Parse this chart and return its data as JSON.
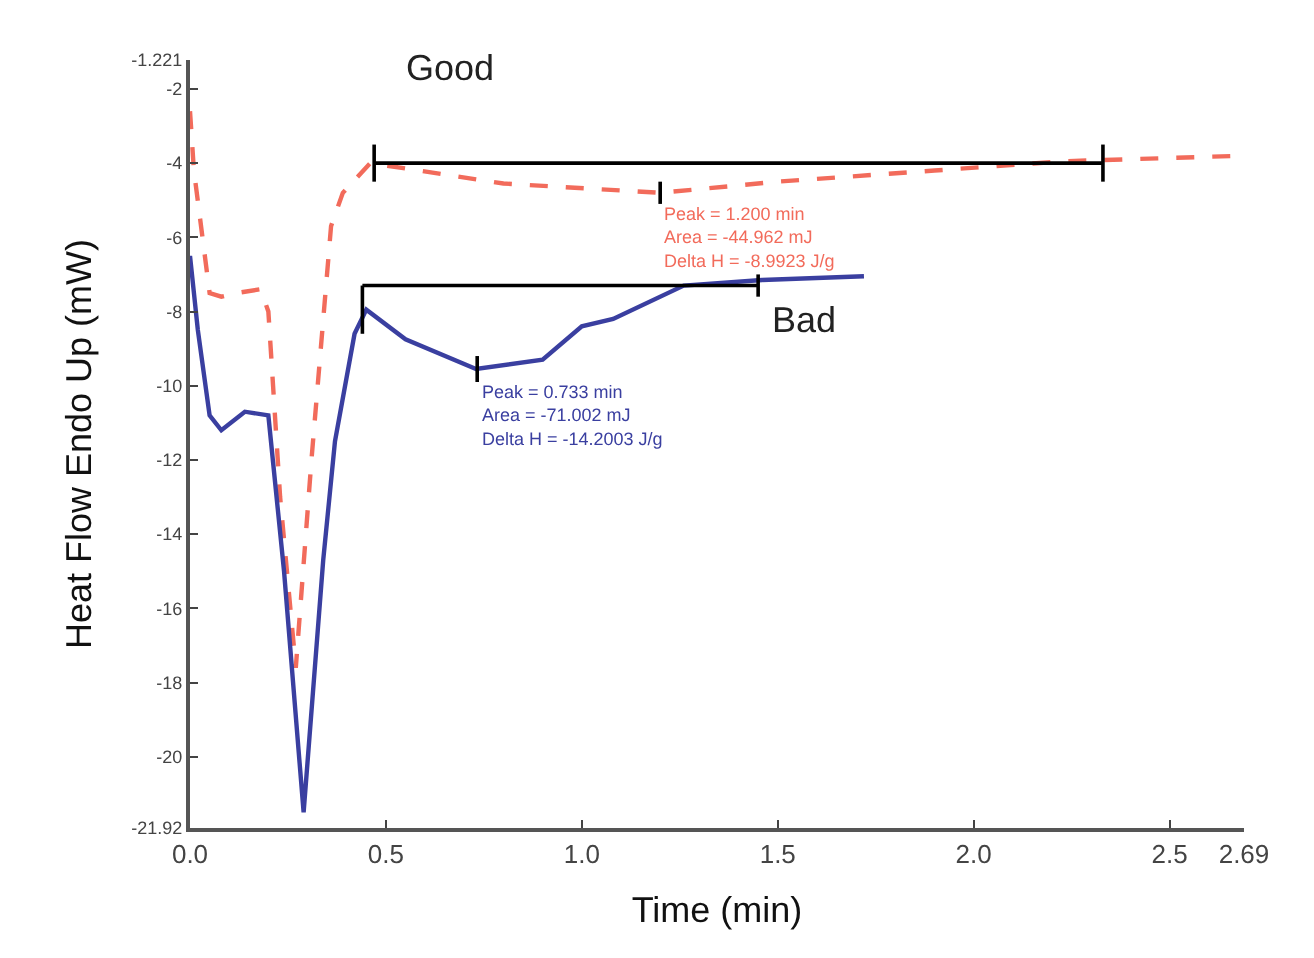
{
  "chart_data": {
    "type": "line",
    "xlabel": "Time (min)",
    "ylabel": "Heat Flow Endo Up (mW)",
    "xlim": [
      0,
      2.69
    ],
    "ylim": [
      -21.92,
      -1.221
    ],
    "xticks": [
      {
        "value": 0,
        "label": "0.0"
      },
      0.5,
      {
        "value": 1,
        "label": "1.0"
      },
      1.5,
      {
        "value": 2,
        "label": "2.0"
      },
      2.5,
      2.69
    ],
    "yticks": [
      -21.92,
      -20,
      -18,
      -16,
      -14,
      -12,
      -10,
      -8,
      -6,
      -4,
      -2,
      -1.221
    ],
    "legend": false,
    "marker": "none",
    "series": [
      {
        "name": "Good",
        "color": "#f26b5b",
        "line_style": "dashed",
        "x": [
          0,
          0.01,
          0.05,
          0.08,
          0.12,
          0.18,
          0.2,
          0.23,
          0.27,
          0.31,
          0.36,
          0.39,
          0.46,
          0.8,
          1.2,
          1.5,
          1.9,
          2.23,
          2.69
        ],
        "values": [
          -2.6,
          -4.2,
          -7.5,
          -7.6,
          -7.5,
          -7.4,
          -8,
          -13,
          -17.6,
          -12,
          -5.7,
          -4.8,
          -4,
          -4.55,
          -4.8,
          -4.5,
          -4.2,
          -3.95,
          -3.8
        ]
      },
      {
        "name": "Bad",
        "color": "#3a3fa0",
        "line_style": "solid",
        "x": [
          0,
          0.02,
          0.05,
          0.08,
          0.14,
          0.2,
          0.24,
          0.29,
          0.34,
          0.37,
          0.42,
          0.45,
          0.55,
          0.73,
          0.9,
          1.0,
          1.08,
          1.26,
          1.46,
          1.72
        ],
        "values": [
          -6.5,
          -8.5,
          -10.8,
          -11.2,
          -10.7,
          -10.8,
          -15,
          -21.5,
          -14.7,
          -11.5,
          -8.6,
          -7.95,
          -8.75,
          -9.55,
          -9.3,
          -8.4,
          -8.2,
          -7.3,
          -7.15,
          -7.05
        ]
      },
      {
        "color": "#000000",
        "line_style": "solid",
        "x": [
          0.47,
          2.33
        ],
        "values": [
          -4,
          -4
        ]
      },
      {
        "color": "#000000",
        "line_style": "solid",
        "x": [
          0.47,
          0.47
        ],
        "values": [
          -3.5,
          -4.5
        ]
      },
      {
        "color": "#000000",
        "line_style": "solid",
        "x": [
          2.33,
          2.33
        ],
        "values": [
          -3.5,
          -4.5
        ]
      },
      {
        "color": "#000000",
        "line_style": "solid",
        "x": [
          1.2,
          1.2
        ],
        "values": [
          -4.5,
          -5.1
        ]
      },
      {
        "color": "#000000",
        "line_style": "solid",
        "x": [
          0.44,
          1.45
        ],
        "values": [
          -7.3,
          -7.3
        ]
      },
      {
        "color": "#000000",
        "line_style": "solid",
        "x": [
          0.44,
          0.44
        ],
        "values": [
          -7.3,
          -8.6
        ]
      },
      {
        "color": "#000000",
        "line_style": "solid",
        "x": [
          1.45,
          1.45
        ],
        "values": [
          -7,
          -7.6
        ]
      },
      {
        "color": "#000000",
        "line_style": "solid",
        "x": [
          0.733,
          0.733
        ],
        "values": [
          -9.2,
          -9.9
        ]
      }
    ],
    "annotations": [
      {
        "text": "Peak = 1.200 min\nArea = -44.962 mJ\nDelta H = -8.9923 J/g",
        "x": 1.2,
        "y": -4.8
      },
      {
        "text": "Peak = 0.733 min\nArea = -71.002 mJ\nDelta H = -14.2003 J/g",
        "x": 0.733,
        "y": -9.55
      }
    ]
  }
}
